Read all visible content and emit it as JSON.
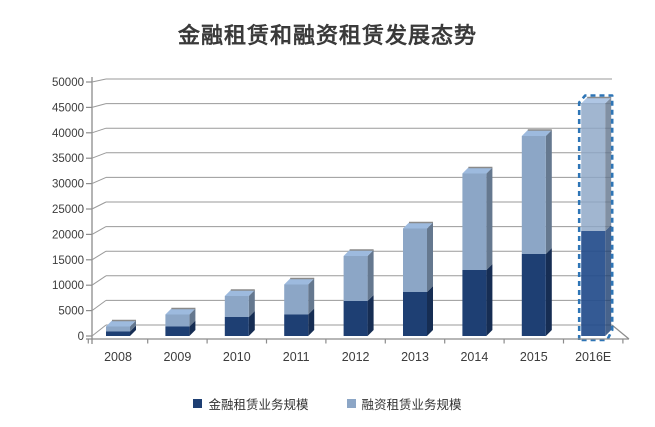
{
  "page": {
    "background": "#ffffff"
  },
  "chart_data": {
    "type": "bar",
    "variant": "3d-stacked-column",
    "title": "金融租赁和融资租赁发展态势",
    "categories": [
      "2008",
      "2009",
      "2010",
      "2011",
      "2012",
      "2013",
      "2014",
      "2015",
      "2016E"
    ],
    "series": [
      {
        "name": "金融租赁业务规模",
        "color": "#1e3f73",
        "values": [
          900,
          1900,
          3800,
          4300,
          7000,
          8800,
          13200,
          16400,
          21000
        ]
      },
      {
        "name": "融资租赁业务规模",
        "color": "#8ca6c6",
        "values": [
          1000,
          2400,
          4200,
          6000,
          9000,
          12700,
          19300,
          23600,
          25500
        ]
      }
    ],
    "stacked_totals": [
      1900,
      4300,
      8000,
      10300,
      16000,
      21500,
      32500,
      40000,
      46500
    ],
    "ylim": [
      0,
      50000
    ],
    "y_tick_step": 5000,
    "y_tick_labels": [
      "0",
      "5000",
      "10000",
      "15000",
      "20000",
      "25000",
      "30000",
      "35000",
      "40000",
      "45000",
      "50000"
    ],
    "estimated_category": "2016E",
    "estimated_outline_color": "#2e75b6",
    "grid": true,
    "gridline_color": "#9a9a9a",
    "axis_color": "#8c8c8c",
    "text_color": "#3c3c3c",
    "legend_position": "bottom"
  }
}
